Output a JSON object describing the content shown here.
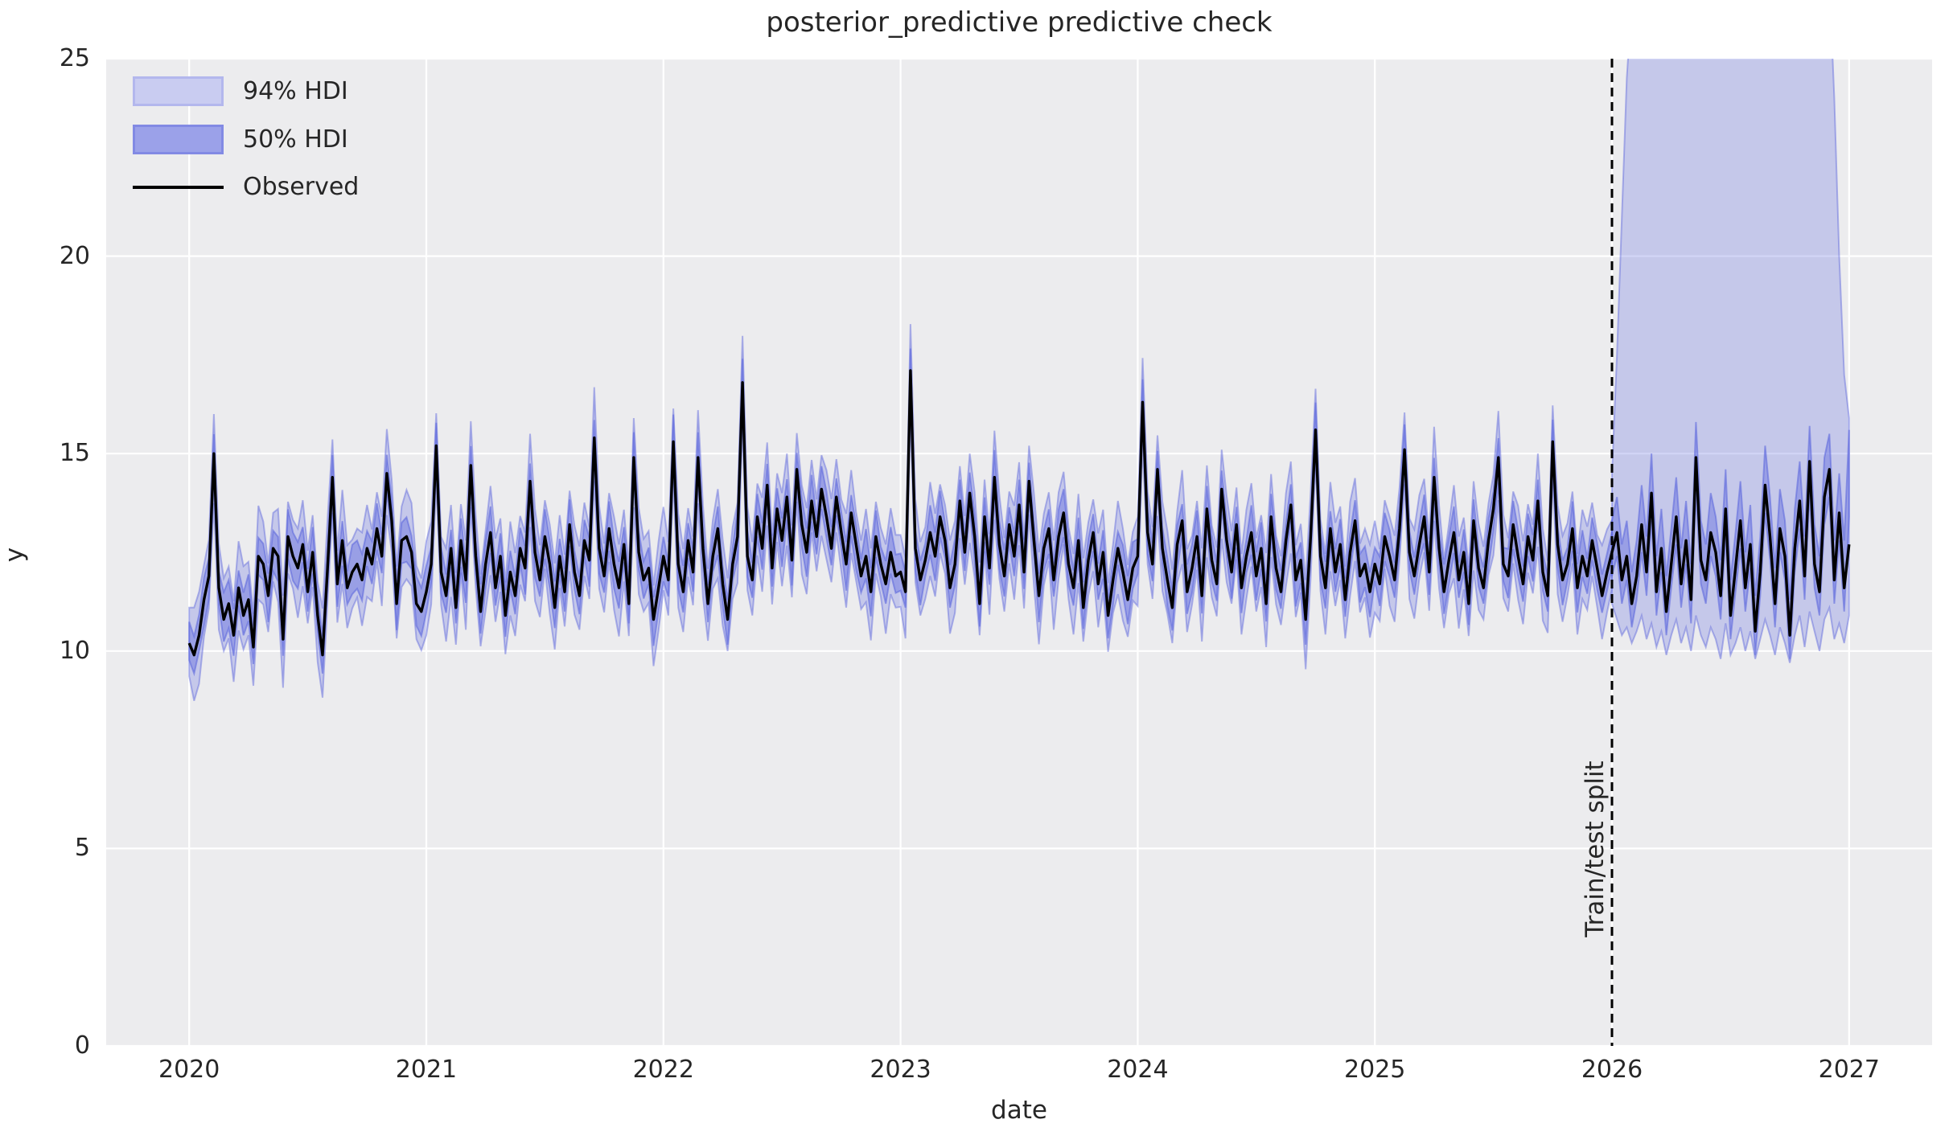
{
  "figure": {
    "title": "posterior_predictive predictive check"
  },
  "legend": {
    "position": "upper left",
    "items": [
      {
        "label": "94% HDI",
        "swatch": "patch-light"
      },
      {
        "label": "50% HDI",
        "swatch": "patch-dark"
      },
      {
        "label": "Observed",
        "swatch": "line"
      }
    ]
  },
  "annotations": {
    "split_label": "Train/test split",
    "split_x": 2026.0
  },
  "chart_data": {
    "type": "line",
    "title": "posterior_predictive predictive check",
    "xlabel": "date",
    "ylabel": "y",
    "xlim": [
      2019.65,
      2027.35
    ],
    "ylim": [
      0,
      25
    ],
    "x_ticks": [
      2020,
      2021,
      2022,
      2023,
      2024,
      2025,
      2026,
      2027
    ],
    "y_ticks": [
      0,
      5,
      10,
      15,
      20,
      25
    ],
    "grid": true,
    "legend_position": "upper left",
    "x_start": 2020.0,
    "x_step": 0.02083333,
    "split_index": 288,
    "train_test_split": 2026.0,
    "observed": [
      10.2,
      9.9,
      10.4,
      11.3,
      11.9,
      15.0,
      11.6,
      10.8,
      11.2,
      10.4,
      11.6,
      10.9,
      11.3,
      10.1,
      12.4,
      12.2,
      11.4,
      12.6,
      12.4,
      10.3,
      12.9,
      12.4,
      12.1,
      12.7,
      11.5,
      12.5,
      10.9,
      9.9,
      12.1,
      14.4,
      11.7,
      12.8,
      11.6,
      12.0,
      12.2,
      11.8,
      12.6,
      12.2,
      13.1,
      12.4,
      14.5,
      13.3,
      11.2,
      12.8,
      12.9,
      12.5,
      11.2,
      11.0,
      11.5,
      12.2,
      15.2,
      12.0,
      11.4,
      12.6,
      11.1,
      12.8,
      11.8,
      14.7,
      12.4,
      11.0,
      12.2,
      13.0,
      11.6,
      12.4,
      10.9,
      12.0,
      11.4,
      12.6,
      12.1,
      14.3,
      12.5,
      11.8,
      12.9,
      12.2,
      11.1,
      12.4,
      11.5,
      13.2,
      12.0,
      11.4,
      12.8,
      12.3,
      15.4,
      12.6,
      11.9,
      13.1,
      12.2,
      11.6,
      12.7,
      11.2,
      14.9,
      12.5,
      11.8,
      12.1,
      10.8,
      11.6,
      12.4,
      11.8,
      15.3,
      12.2,
      11.5,
      12.8,
      12.0,
      14.9,
      12.6,
      11.2,
      12.4,
      13.1,
      11.7,
      10.8,
      12.2,
      12.9,
      16.8,
      12.4,
      11.8,
      13.4,
      12.6,
      14.2,
      12.1,
      13.6,
      12.8,
      13.9,
      12.3,
      14.6,
      13.2,
      12.5,
      13.8,
      12.9,
      14.1,
      13.4,
      12.6,
      13.9,
      13.0,
      12.2,
      13.5,
      12.7,
      11.9,
      12.4,
      11.5,
      12.9,
      12.2,
      11.7,
      12.5,
      11.9,
      12.0,
      11.5,
      17.1,
      12.6,
      11.8,
      12.3,
      13.0,
      12.4,
      13.4,
      12.8,
      11.6,
      12.2,
      13.8,
      12.5,
      14.0,
      12.9,
      11.2,
      13.4,
      12.1,
      14.4,
      12.7,
      11.9,
      13.2,
      12.4,
      13.7,
      12.0,
      14.3,
      12.8,
      11.4,
      12.6,
      13.1,
      11.8,
      12.9,
      13.5,
      12.2,
      11.6,
      12.8,
      11.1,
      12.3,
      13.0,
      11.7,
      12.5,
      10.9,
      11.8,
      12.6,
      12.0,
      11.3,
      12.1,
      12.4,
      16.3,
      13.0,
      12.2,
      14.6,
      12.6,
      11.8,
      11.1,
      12.7,
      13.3,
      11.5,
      12.1,
      12.9,
      11.4,
      13.6,
      12.3,
      11.7,
      14.1,
      12.8,
      12.0,
      13.2,
      11.6,
      12.4,
      13.0,
      11.9,
      12.6,
      11.2,
      13.4,
      12.1,
      11.5,
      12.8,
      13.7,
      11.8,
      12.3,
      10.8,
      12.9,
      15.6,
      12.4,
      11.6,
      13.1,
      12.0,
      12.7,
      11.3,
      12.5,
      13.3,
      11.9,
      12.2,
      11.5,
      12.2,
      11.7,
      12.9,
      12.4,
      11.8,
      13.1,
      15.1,
      12.5,
      11.9,
      12.7,
      13.4,
      12.0,
      14.4,
      12.6,
      11.5,
      12.3,
      13.0,
      11.8,
      12.5,
      11.2,
      13.3,
      12.1,
      11.6,
      12.8,
      13.6,
      14.9,
      12.2,
      11.9,
      13.2,
      12.4,
      11.7,
      12.9,
      12.3,
      13.8,
      12.0,
      11.4,
      15.3,
      12.7,
      11.8,
      12.2,
      13.1,
      11.6,
      12.4,
      11.9,
      12.8,
      12.1,
      11.4,
      12.0,
      12.5,
      13.0,
      11.8,
      12.4,
      11.2,
      11.9,
      13.2,
      12.0,
      14.0,
      11.5,
      12.6,
      11.0,
      12.2,
      13.4,
      11.7,
      12.8,
      11.3,
      14.9,
      12.3,
      11.8,
      13.0,
      12.5,
      11.4,
      13.6,
      10.9,
      12.1,
      13.3,
      11.6,
      12.7,
      10.5,
      12.0,
      14.2,
      12.9,
      11.2,
      13.1,
      12.4,
      10.4,
      12.6,
      13.8,
      11.9,
      14.8,
      12.2,
      11.5,
      13.9,
      14.6,
      11.8,
      13.5,
      11.6,
      12.7
    ],
    "train_band": {
      "w50_down": 0.4,
      "w50_up": 0.42,
      "w94_down": 0.78,
      "w94_up": 0.8,
      "p50": [
        0.03,
        0.16,
        0.07,
        0.22,
        0.0,
        0.12,
        0.27,
        0.05,
        0.18,
        0.1,
        0.24,
        0.14,
        0.02
      ],
      "p94": [
        0.06,
        0.28,
        0.12,
        0.38,
        0.02,
        0.2,
        0.45,
        0.1,
        0.32,
        0.16,
        0.4,
        0.24,
        0.04,
        0.3,
        0.14,
        0.48,
        0.08
      ]
    },
    "test_band": {
      "x_start": 2026.0,
      "hdi94_upper": [
        14.5,
        17.5,
        21.0,
        24.5,
        26.5,
        27.5,
        28.0,
        28.0,
        28.0,
        28.0,
        28.0,
        28.0,
        28.0,
        28.0,
        28.0,
        28.0,
        28.0,
        28.0,
        28.0,
        28.0,
        28.0,
        28.0,
        28.0,
        28.0,
        28.0,
        28.0,
        28.0,
        28.0,
        28.0,
        28.0,
        28.0,
        28.0,
        28.0,
        28.0,
        28.0,
        28.0,
        28.0,
        28.0,
        28.0,
        28.0,
        28.0,
        28.0,
        28.0,
        28.0,
        27.0,
        24.0,
        20.0,
        17.0,
        15.9
      ],
      "hdi94_lower": [
        11.2,
        10.8,
        10.4,
        10.6,
        10.2,
        10.5,
        10.9,
        10.3,
        10.7,
        10.1,
        10.5,
        9.9,
        10.4,
        10.8,
        10.2,
        10.6,
        10.0,
        10.9,
        10.4,
        10.1,
        10.6,
        10.3,
        9.8,
        10.7,
        9.9,
        10.2,
        10.6,
        10.0,
        10.5,
        9.8,
        10.3,
        10.8,
        10.4,
        9.9,
        10.6,
        10.2,
        9.7,
        10.4,
        10.9,
        10.1,
        11.0,
        10.5,
        10.0,
        10.8,
        11.1,
        10.3,
        10.7,
        10.2,
        10.9
      ],
      "hdi50_upper": [
        13.3,
        13.9,
        12.7,
        13.3,
        12.0,
        12.8,
        14.2,
        12.9,
        15.0,
        12.4,
        13.6,
        11.9,
        13.1,
        14.4,
        12.6,
        13.8,
        12.2,
        15.8,
        13.3,
        12.7,
        14.0,
        13.4,
        12.3,
        14.6,
        11.8,
        13.0,
        14.3,
        12.5,
        13.7,
        11.4,
        12.9,
        15.2,
        13.9,
        12.1,
        14.1,
        13.3,
        11.3,
        13.6,
        14.8,
        12.9,
        15.7,
        13.2,
        12.4,
        14.9,
        15.5,
        12.8,
        14.5,
        12.8,
        15.6
      ],
      "hdi50_lower": [
        11.9,
        12.4,
        11.2,
        11.8,
        10.6,
        11.3,
        12.5,
        11.4,
        13.3,
        10.9,
        12.0,
        10.4,
        11.6,
        12.7,
        11.1,
        12.2,
        10.7,
        14.0,
        11.7,
        11.2,
        12.4,
        11.9,
        10.8,
        12.9,
        10.3,
        11.5,
        12.6,
        11.0,
        12.1,
        9.9,
        11.4,
        13.5,
        12.3,
        10.6,
        12.5,
        11.8,
        9.8,
        12.0,
        13.1,
        11.3,
        14.0,
        11.6,
        10.9,
        13.2,
        13.9,
        11.2,
        12.8,
        11.0,
        13.4
      ]
    },
    "colors": {
      "band": "#6973e0",
      "band_94_alpha": 0.3,
      "band_50_alpha": 0.48,
      "band_edge": "#5a64dc",
      "observed": "#000000",
      "plot_bg": "#ececee",
      "grid": "#ffffff",
      "text": "#262626",
      "split_line": "#000000",
      "legend_94_fill": "#c9ccf1",
      "legend_94_edge": "#b3b7ed",
      "legend_50_fill": "#9ba1e9",
      "legend_50_edge": "#828ae4"
    }
  }
}
